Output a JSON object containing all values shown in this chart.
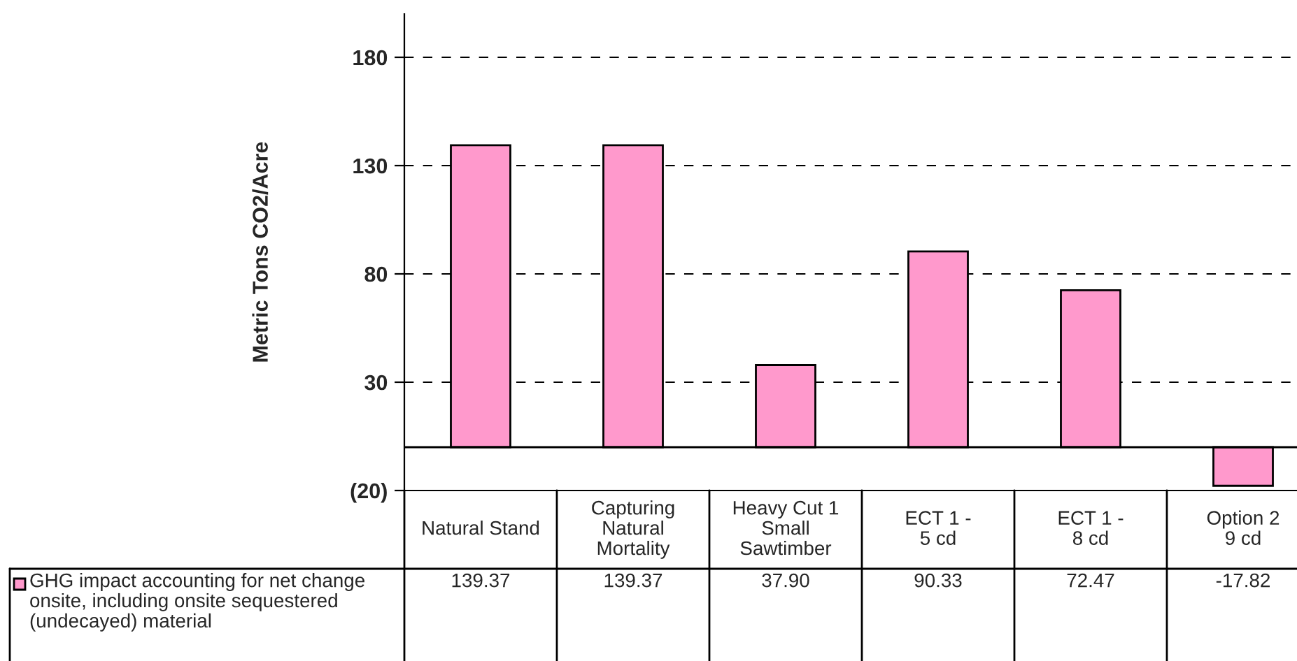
{
  "chart_data": {
    "type": "bar",
    "ylabel": "Metric Tons CO2/Acre",
    "categories": [
      "Natural Stand",
      "Capturing\nNatural\nMortality",
      "Heavy Cut 1\nSmall\nSawtimber",
      "ECT 1 -\n5 cd",
      "ECT 1 -\n8 cd",
      "Option 2\n9 cd"
    ],
    "series": [
      {
        "name": "GHG impact accounting for net change\nonsite, including onsite sequestered\n(undecayed) material",
        "color": "#ff99cc",
        "values": [
          139.37,
          139.37,
          37.9,
          90.33,
          72.47,
          -17.82
        ],
        "value_labels": [
          "139.37",
          "139.37",
          "37.90",
          "90.33",
          "72.47",
          "-17.82"
        ]
      }
    ],
    "ylim": [
      -20,
      200
    ],
    "yticks": [
      {
        "value": -20,
        "label": "(20)"
      },
      30,
      80,
      130,
      180
    ],
    "grid": "y",
    "line_style": "dashed",
    "legend": "bottom left"
  }
}
